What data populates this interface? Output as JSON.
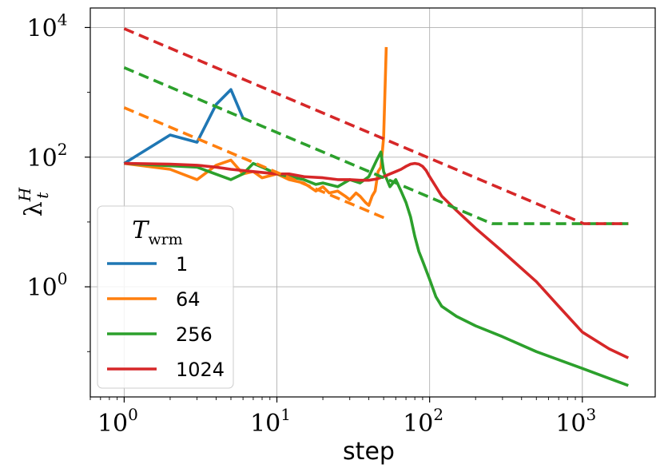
{
  "chart_data": {
    "type": "line",
    "xlabel": "step",
    "ylabel": "λ_t^H",
    "xscale": "log",
    "yscale": "log",
    "xlim": [
      0.6,
      3000
    ],
    "ylim": [
      0.02,
      20000
    ],
    "grid": true,
    "x_ticks": [
      {
        "base": "10",
        "exp": "0",
        "value": 1
      },
      {
        "base": "10",
        "exp": "1",
        "value": 10
      },
      {
        "base": "10",
        "exp": "2",
        "value": 100
      },
      {
        "base": "10",
        "exp": "3",
        "value": 1000
      }
    ],
    "y_ticks": [
      {
        "base": "10",
        "exp": "0",
        "value": 1
      },
      {
        "base": "10",
        "exp": "2",
        "value": 100
      },
      {
        "base": "10",
        "exp": "4",
        "value": 10000
      }
    ],
    "legend": {
      "title": "T_wrm",
      "placement": "lower-left"
    },
    "series": [
      {
        "name": "1",
        "color": "#1f77b4",
        "style": "solid",
        "x": [
          1,
          2,
          3,
          4,
          5,
          6
        ],
        "y": [
          80,
          220,
          170,
          650,
          1100,
          400
        ]
      },
      {
        "name": "64",
        "color": "#ff7f0e",
        "style": "solid",
        "x": [
          1,
          2,
          3,
          4,
          5,
          6,
          7,
          8,
          10,
          12,
          15,
          18,
          20,
          22,
          25,
          28,
          30,
          33,
          35,
          38,
          40,
          42,
          44,
          46,
          48,
          50,
          52
        ],
        "y": [
          80,
          65,
          45,
          75,
          90,
          55,
          60,
          48,
          55,
          45,
          40,
          30,
          35,
          28,
          30,
          25,
          22,
          28,
          25,
          20,
          18,
          25,
          30,
          60,
          70,
          200,
          5000
        ]
      },
      {
        "name": "256",
        "color": "#2ca02c",
        "style": "solid",
        "x": [
          1,
          3,
          5,
          6,
          7,
          8,
          10,
          12,
          15,
          18,
          20,
          25,
          30,
          35,
          40,
          45,
          48,
          50,
          55,
          60,
          65,
          70,
          75,
          80,
          85,
          90,
          100,
          110,
          120,
          150,
          200,
          300,
          500,
          1000,
          2000
        ],
        "y": [
          80,
          70,
          45,
          55,
          80,
          70,
          55,
          50,
          45,
          38,
          40,
          35,
          45,
          40,
          50,
          90,
          120,
          60,
          35,
          45,
          30,
          20,
          12,
          6,
          3.5,
          2.5,
          1.3,
          0.7,
          0.5,
          0.35,
          0.25,
          0.17,
          0.1,
          0.055,
          0.03
        ]
      },
      {
        "name": "1024",
        "color": "#d62728",
        "style": "solid",
        "x": [
          1,
          2,
          3,
          4,
          5,
          7,
          10,
          12,
          15,
          20,
          25,
          30,
          35,
          40,
          45,
          50,
          55,
          60,
          65,
          70,
          75,
          80,
          85,
          90,
          95,
          100,
          110,
          120,
          150,
          200,
          300,
          500,
          700,
          1000,
          1500,
          2000
        ],
        "y": [
          80,
          78,
          75,
          70,
          65,
          60,
          55,
          55,
          50,
          48,
          45,
          45,
          44,
          44,
          46,
          50,
          55,
          60,
          65,
          72,
          78,
          80,
          78,
          72,
          62,
          50,
          35,
          25,
          15,
          8,
          3.5,
          1.2,
          0.5,
          0.2,
          0.11,
          0.08
        ]
      },
      {
        "name": "",
        "color": "#ff7f0e",
        "style": "dashed",
        "x": [
          1,
          52
        ],
        "y": [
          580,
          11.2
        ]
      },
      {
        "name": "",
        "color": "#2ca02c",
        "style": "dashed",
        "x": [
          1,
          256,
          2000
        ],
        "y": [
          2400,
          9.4,
          9.4
        ]
      },
      {
        "name": "",
        "color": "#d62728",
        "style": "dashed",
        "x": [
          1,
          1024,
          2000
        ],
        "y": [
          9600,
          9.4,
          9.4
        ]
      }
    ]
  }
}
